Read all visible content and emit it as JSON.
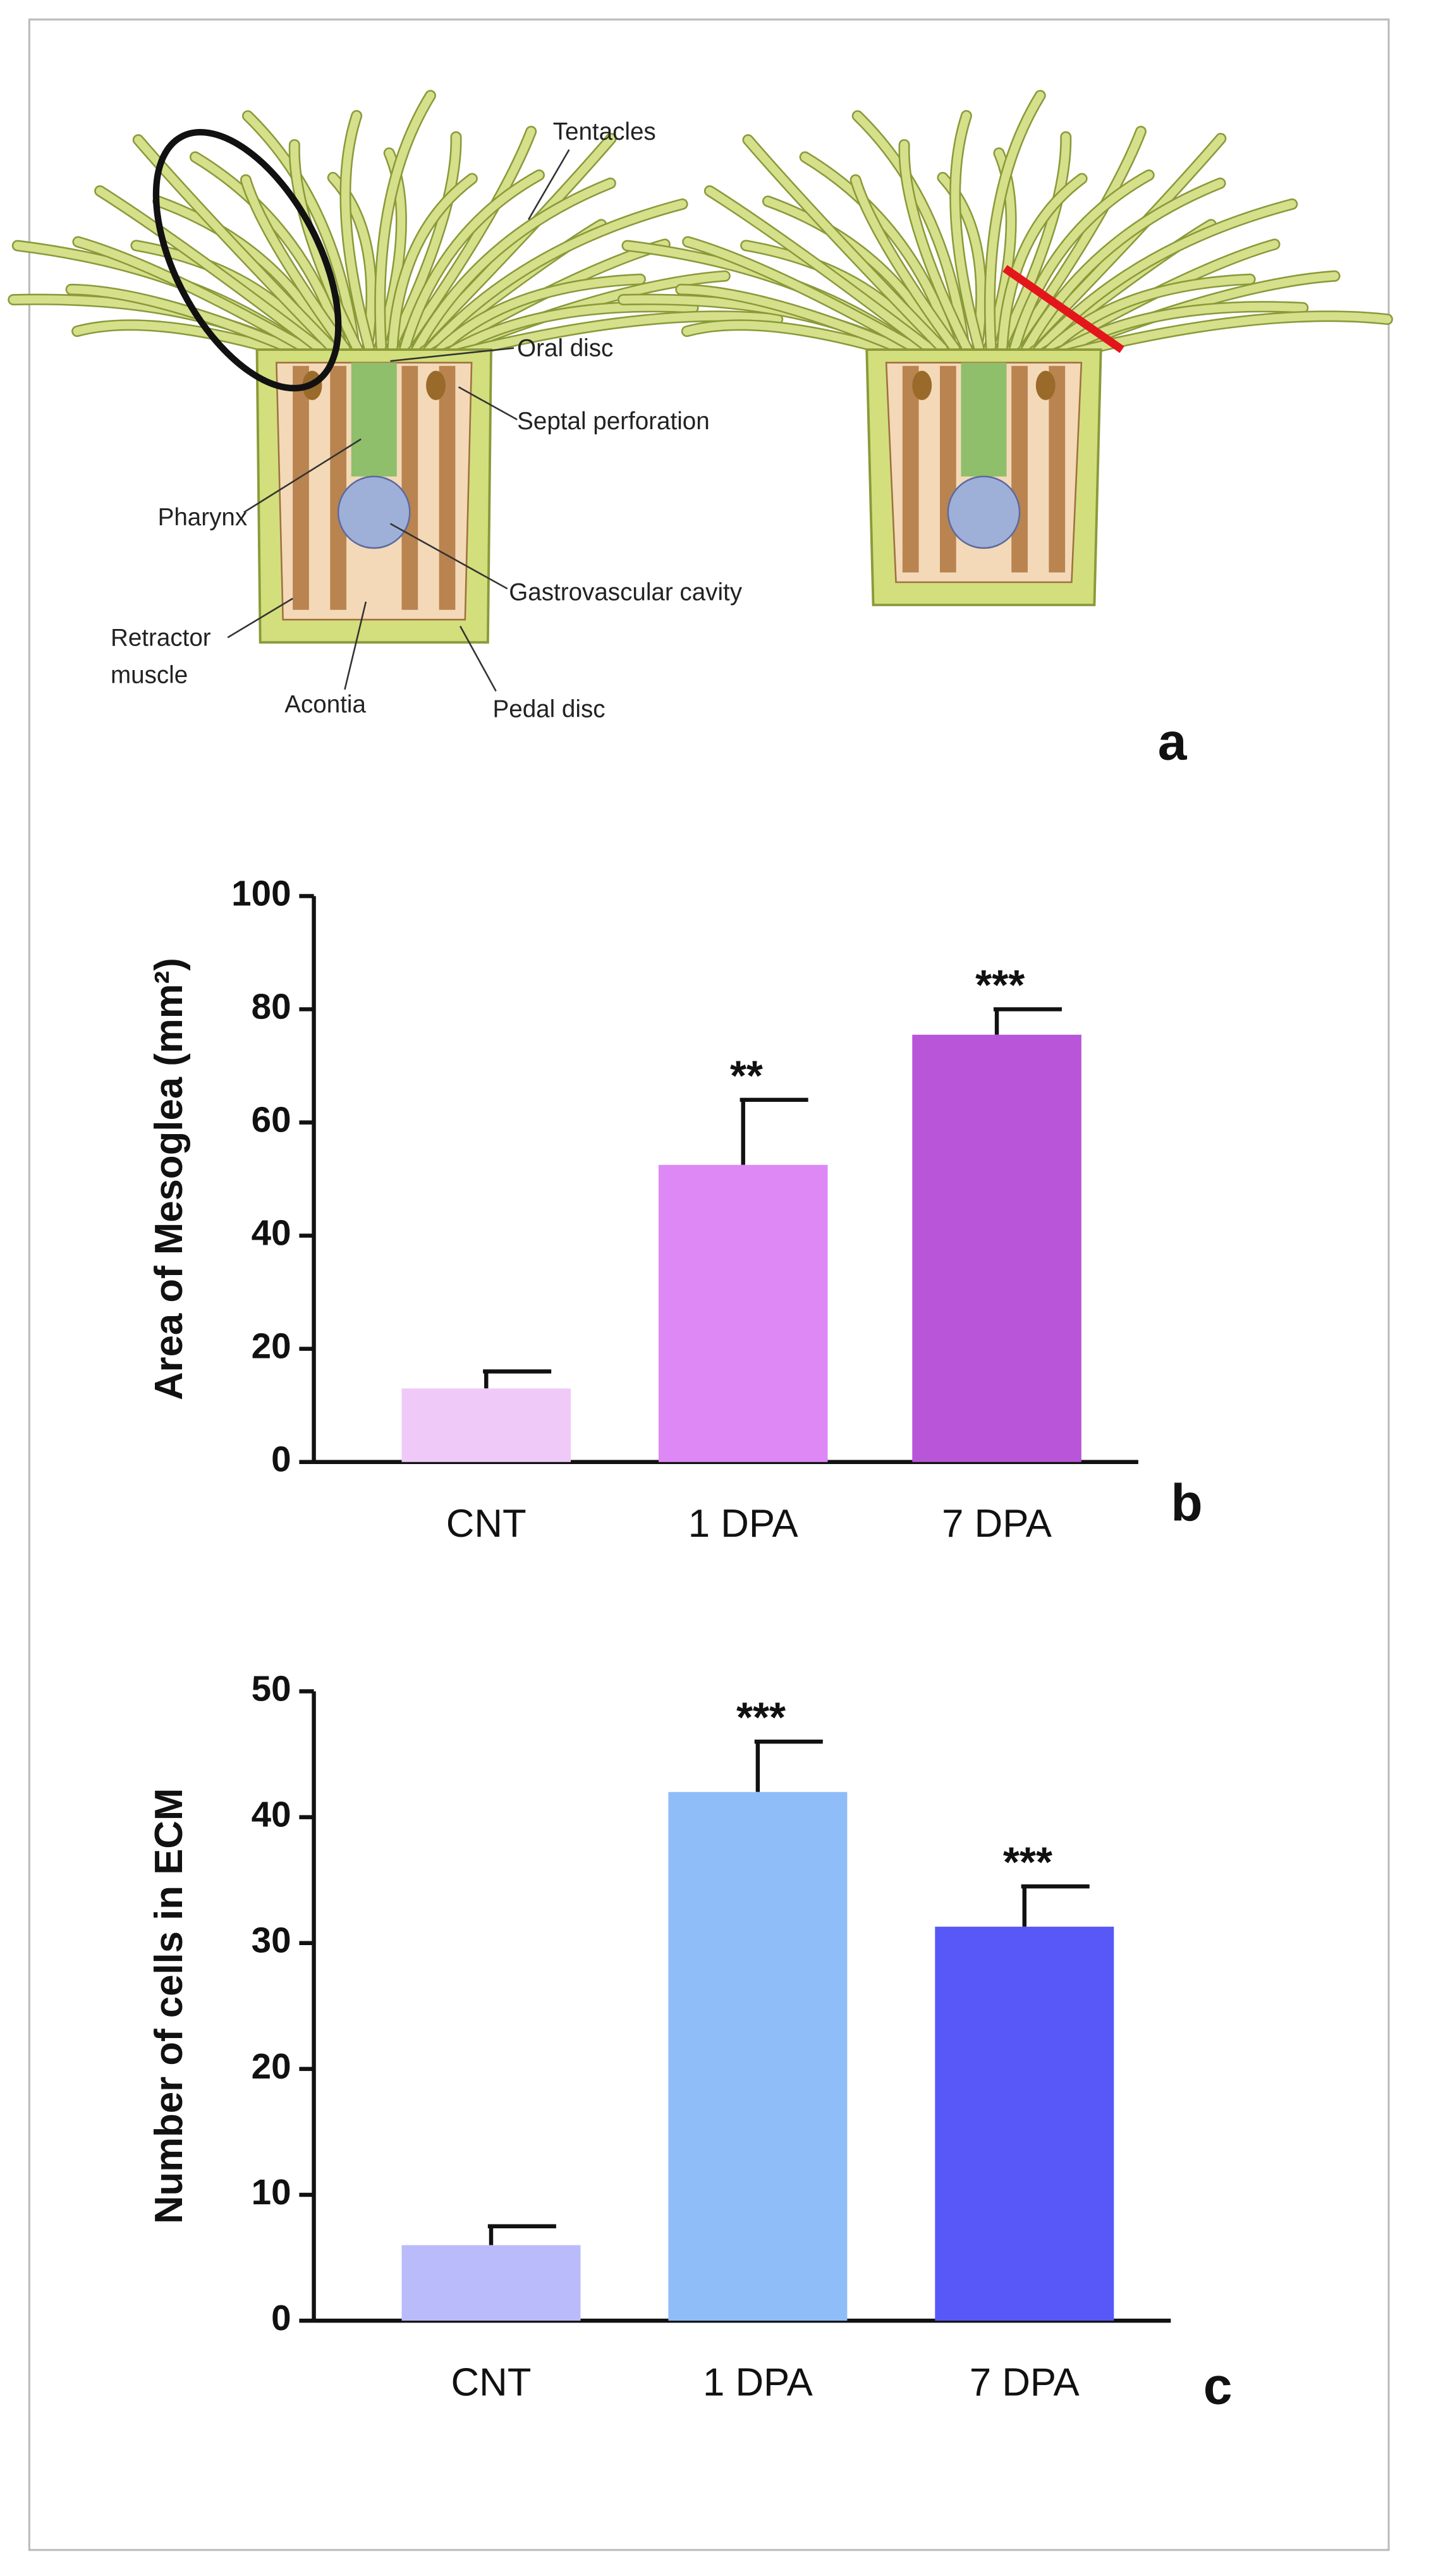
{
  "diagram": {
    "labels": {
      "tentacles": "Tentacles",
      "oral_disc": "Oral disc",
      "septal_perforation": "Septal perforation",
      "pharynx": "Pharynx",
      "gastrovascular_cavity": "Gastrovascular cavity",
      "retractor_muscle": [
        "Retractor",
        "muscle"
      ],
      "acontia": "Acontia",
      "pedal_disc": "Pedal disc"
    },
    "panel_label": "a"
  },
  "chart_data": [
    {
      "type": "bar",
      "panel_label": "b",
      "y_label": "Area of Mesoglea (mm²)",
      "categories": [
        "CNT",
        "1 DPA",
        "7 DPA"
      ],
      "values": [
        13,
        52.5,
        75.5
      ],
      "errors": [
        3,
        11.5,
        4.5
      ],
      "colors": [
        "#efc9f7",
        "#dd88f5",
        "#b855d8"
      ],
      "value_annotations": [
        null,
        "**",
        "***"
      ],
      "ylim": [
        0,
        100
      ],
      "yticks": [
        0,
        20,
        40,
        60,
        80,
        100
      ]
    },
    {
      "type": "bar",
      "panel_label": "c",
      "y_label": "Number of cells in ECM",
      "categories": [
        "CNT",
        "1 DPA",
        "7 DPA"
      ],
      "values": [
        6,
        42,
        31.3
      ],
      "errors": [
        1.5,
        4,
        3.2
      ],
      "colors": [
        "#babbfb",
        "#8fbdf7",
        "#5858f8"
      ],
      "value_annotations": [
        null,
        "***",
        "***"
      ],
      "ylim": [
        0,
        50
      ],
      "yticks": [
        0,
        10,
        20,
        30,
        40,
        50
      ]
    }
  ]
}
